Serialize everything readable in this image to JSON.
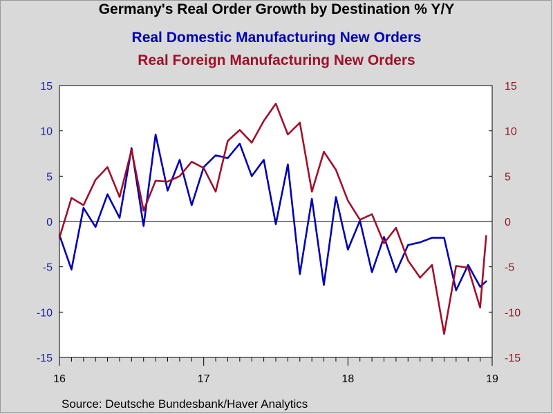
{
  "title": "Germany's Real Order Growth by Destination % Y/Y",
  "source": "Source:  Deutsche Bundesbank/Haver Analytics",
  "colors": {
    "background": "#d9d9d9",
    "plot_background": "#ffffff",
    "domestic": "#0000b4",
    "foreign": "#a0102a",
    "left_axis_text": "#1f1fa0",
    "right_axis_text": "#8b1a2b"
  },
  "chart_data": {
    "type": "line",
    "x_range": [
      2016.0,
      2019.0
    ],
    "left_axis": {
      "ylim": [
        -15,
        15
      ],
      "ticks": [
        15,
        10,
        5,
        0,
        -5,
        -10,
        -15
      ]
    },
    "right_axis": {
      "ylim": [
        -15,
        15
      ],
      "ticks": [
        15,
        10,
        5,
        0,
        -5,
        -10,
        -15
      ]
    },
    "x_ticks": [
      {
        "value": 2016,
        "label": "16"
      },
      {
        "value": 2017,
        "label": "17"
      },
      {
        "value": 2018,
        "label": "18"
      },
      {
        "value": 2019,
        "label": "19"
      }
    ],
    "zero_line": true,
    "grid": false,
    "series": [
      {
        "name": "Real Domestic Manufacturing New Orders",
        "axis": "left",
        "color": "#0000b4",
        "x": [
          2016.0,
          2016.0833,
          2016.1667,
          2016.25,
          2016.3333,
          2016.4167,
          2016.5,
          2016.5833,
          2016.6667,
          2016.75,
          2016.8333,
          2016.9167,
          2017.0,
          2017.0833,
          2017.1667,
          2017.25,
          2017.3333,
          2017.4167,
          2017.5,
          2017.5833,
          2017.6667,
          2017.75,
          2017.8333,
          2017.9167,
          2018.0,
          2018.0833,
          2018.1667,
          2018.25,
          2018.3333,
          2018.4167,
          2018.5,
          2018.5833,
          2018.6667,
          2018.75,
          2018.8333,
          2018.9167,
          2018.9583
        ],
        "values": [
          -1.5,
          -5.3,
          1.5,
          -0.6,
          3.0,
          0.4,
          8.1,
          -0.5,
          9.6,
          3.4,
          6.8,
          1.8,
          6.0,
          7.3,
          7.0,
          8.6,
          5.0,
          6.8,
          -0.3,
          6.3,
          -5.8,
          2.5,
          -7.0,
          2.7,
          -3.1,
          0.1,
          -5.6,
          -1.7,
          -5.6,
          -2.6,
          -2.3,
          -1.8,
          -1.8,
          -7.6,
          -4.8,
          -7.2,
          -6.6
        ]
      },
      {
        "name": "Real Foreign Manufacturing New Orders",
        "axis": "right",
        "color": "#a0102a",
        "x": [
          2016.0,
          2016.0833,
          2016.1667,
          2016.25,
          2016.3333,
          2016.4167,
          2016.5,
          2016.5833,
          2016.6667,
          2016.75,
          2016.8333,
          2016.9167,
          2017.0,
          2017.0833,
          2017.1667,
          2017.25,
          2017.3333,
          2017.4167,
          2017.5,
          2017.5833,
          2017.6667,
          2017.75,
          2017.8333,
          2017.9167,
          2018.0,
          2018.0833,
          2018.1667,
          2018.25,
          2018.3333,
          2018.4167,
          2018.5,
          2018.5833,
          2018.6667,
          2018.75,
          2018.8333,
          2018.9167,
          2018.9583
        ],
        "values": [
          -1.8,
          2.6,
          1.8,
          4.6,
          6.0,
          2.7,
          7.9,
          1.2,
          4.5,
          4.4,
          5.0,
          6.6,
          5.9,
          3.3,
          8.9,
          10.1,
          8.7,
          11.1,
          13.0,
          9.6,
          10.9,
          3.3,
          7.7,
          5.7,
          2.3,
          0.2,
          0.8,
          -2.4,
          -0.7,
          -4.3,
          -6.2,
          -4.8,
          -12.4,
          -4.9,
          -5.1,
          -9.5,
          -1.6
        ]
      }
    ]
  }
}
